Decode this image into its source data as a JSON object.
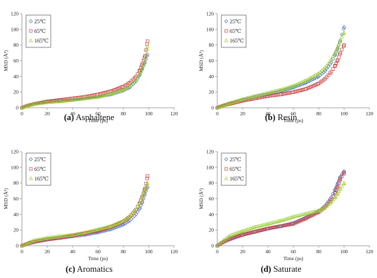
{
  "colors": {
    "series": [
      "#4a6fc7",
      "#c94040",
      "#9acd32"
    ],
    "axis": "#888888"
  },
  "chart_data": [
    {
      "type": "scatter",
      "caption_letter": "(a)",
      "caption_name": "Asphaltene",
      "xlabel": "Time (ps)",
      "ylabel": "MSD (Å²)",
      "xlim": [
        0,
        120
      ],
      "ylim": [
        0,
        120
      ],
      "xticks": [
        0,
        20,
        40,
        60,
        80,
        100,
        120
      ],
      "yticks": [
        0,
        20,
        40,
        60,
        80,
        100,
        120
      ],
      "legend_position": "top-left",
      "series": [
        {
          "name": "25℃",
          "marker": "diamond",
          "points": [
            [
              0,
              0
            ],
            [
              5,
              3
            ],
            [
              10,
              5
            ],
            [
              20,
              8
            ],
            [
              30,
              9
            ],
            [
              40,
              10
            ],
            [
              50,
              12
            ],
            [
              60,
              14
            ],
            [
              70,
              17
            ],
            [
              80,
              22
            ],
            [
              85,
              26
            ],
            [
              90,
              34
            ],
            [
              93,
              42
            ],
            [
              95,
              50
            ],
            [
              97,
              58
            ],
            [
              99,
              68
            ]
          ]
        },
        {
          "name": "65℃",
          "marker": "square",
          "points": [
            [
              0,
              0
            ],
            [
              5,
              3
            ],
            [
              10,
              5
            ],
            [
              20,
              8
            ],
            [
              30,
              10
            ],
            [
              40,
              12
            ],
            [
              50,
              14
            ],
            [
              60,
              17
            ],
            [
              70,
              21
            ],
            [
              80,
              27
            ],
            [
              85,
              32
            ],
            [
              90,
              40
            ],
            [
              93,
              48
            ],
            [
              95,
              56
            ],
            [
              97,
              66
            ],
            [
              99,
              85
            ]
          ]
        },
        {
          "name": "165℃",
          "marker": "triangle",
          "points": [
            [
              0,
              0
            ],
            [
              5,
              3
            ],
            [
              10,
              5
            ],
            [
              20,
              7
            ],
            [
              30,
              8
            ],
            [
              40,
              10
            ],
            [
              50,
              12
            ],
            [
              60,
              14
            ],
            [
              70,
              18
            ],
            [
              80,
              23
            ],
            [
              85,
              28
            ],
            [
              90,
              36
            ],
            [
              93,
              44
            ],
            [
              95,
              52
            ],
            [
              97,
              62
            ],
            [
              99,
              78
            ]
          ]
        }
      ]
    },
    {
      "type": "scatter",
      "caption_letter": "(b)",
      "caption_name": "Resin",
      "xlabel": "Time (ps)",
      "ylabel": "MSD (Å²)",
      "xlim": [
        0,
        120
      ],
      "ylim": [
        0,
        120
      ],
      "xticks": [
        0,
        20,
        40,
        60,
        80,
        100,
        120
      ],
      "yticks": [
        0,
        20,
        40,
        60,
        80,
        100,
        120
      ],
      "legend_position": "top-left",
      "series": [
        {
          "name": "25℃",
          "marker": "diamond",
          "points": [
            [
              0,
              0
            ],
            [
              5,
              3
            ],
            [
              10,
              6
            ],
            [
              20,
              10
            ],
            [
              30,
              14
            ],
            [
              40,
              17
            ],
            [
              50,
              21
            ],
            [
              60,
              26
            ],
            [
              70,
              32
            ],
            [
              80,
              40
            ],
            [
              85,
              47
            ],
            [
              90,
              58
            ],
            [
              93,
              68
            ],
            [
              95,
              76
            ],
            [
              97,
              86
            ],
            [
              100,
              103
            ]
          ]
        },
        {
          "name": "65℃",
          "marker": "square",
          "points": [
            [
              0,
              0
            ],
            [
              5,
              3
            ],
            [
              10,
              5
            ],
            [
              20,
              9
            ],
            [
              30,
              12
            ],
            [
              40,
              15
            ],
            [
              50,
              17
            ],
            [
              60,
              20
            ],
            [
              70,
              24
            ],
            [
              80,
              31
            ],
            [
              85,
              37
            ],
            [
              90,
              46
            ],
            [
              93,
              54
            ],
            [
              95,
              61
            ],
            [
              97,
              70
            ],
            [
              100,
              80
            ]
          ]
        },
        {
          "name": "165℃",
          "marker": "triangle",
          "points": [
            [
              0,
              0
            ],
            [
              5,
              3
            ],
            [
              10,
              6
            ],
            [
              20,
              11
            ],
            [
              30,
              15
            ],
            [
              40,
              19
            ],
            [
              50,
              23
            ],
            [
              60,
              28
            ],
            [
              70,
              35
            ],
            [
              80,
              44
            ],
            [
              85,
              51
            ],
            [
              90,
              62
            ],
            [
              93,
              71
            ],
            [
              95,
              78
            ],
            [
              97,
              86
            ],
            [
              100,
              96
            ]
          ]
        }
      ]
    },
    {
      "type": "scatter",
      "caption_letter": "(c)",
      "caption_name": "Aromatics",
      "xlabel": "Time (ps)",
      "ylabel": "MSD (Å²)",
      "xlim": [
        0,
        120
      ],
      "ylim": [
        0,
        120
      ],
      "xticks": [
        0,
        20,
        40,
        60,
        80,
        100,
        120
      ],
      "yticks": [
        0,
        20,
        40,
        60,
        80,
        100,
        120
      ],
      "legend_position": "top-left",
      "series": [
        {
          "name": "25℃",
          "marker": "diamond",
          "points": [
            [
              0,
              0
            ],
            [
              5,
              3
            ],
            [
              10,
              5
            ],
            [
              20,
              8
            ],
            [
              30,
              10
            ],
            [
              40,
              12
            ],
            [
              50,
              14
            ],
            [
              60,
              17
            ],
            [
              70,
              21
            ],
            [
              80,
              27
            ],
            [
              85,
              32
            ],
            [
              90,
              40
            ],
            [
              93,
              48
            ],
            [
              95,
              56
            ],
            [
              97,
              66
            ],
            [
              99,
              75
            ]
          ]
        },
        {
          "name": "65℃",
          "marker": "square",
          "points": [
            [
              0,
              0
            ],
            [
              5,
              3
            ],
            [
              10,
              5
            ],
            [
              20,
              8
            ],
            [
              30,
              10
            ],
            [
              40,
              13
            ],
            [
              50,
              16
            ],
            [
              60,
              19
            ],
            [
              70,
              24
            ],
            [
              80,
              31
            ],
            [
              85,
              37
            ],
            [
              90,
              46
            ],
            [
              93,
              55
            ],
            [
              95,
              63
            ],
            [
              97,
              73
            ],
            [
              99,
              89
            ]
          ]
        },
        {
          "name": "165℃",
          "marker": "triangle",
          "points": [
            [
              0,
              0
            ],
            [
              5,
              4
            ],
            [
              10,
              7
            ],
            [
              20,
              10
            ],
            [
              30,
              12
            ],
            [
              40,
              14
            ],
            [
              50,
              17
            ],
            [
              60,
              21
            ],
            [
              70,
              25
            ],
            [
              80,
              32
            ],
            [
              85,
              38
            ],
            [
              90,
              47
            ],
            [
              93,
              55
            ],
            [
              95,
              63
            ],
            [
              97,
              72
            ],
            [
              99,
              80
            ]
          ]
        }
      ]
    },
    {
      "type": "scatter",
      "caption_letter": "(d)",
      "caption_name": "Saturate",
      "xlabel": "Time (ps)",
      "ylabel": "MSD (Å²)",
      "xlim": [
        0,
        120
      ],
      "ylim": [
        0,
        120
      ],
      "xticks": [
        0,
        20,
        40,
        60,
        80,
        100,
        120
      ],
      "yticks": [
        0,
        20,
        40,
        60,
        80,
        100,
        120
      ],
      "legend_position": "top-left",
      "series": [
        {
          "name": "25℃",
          "marker": "diamond",
          "points": [
            [
              0,
              0
            ],
            [
              5,
              5
            ],
            [
              10,
              8
            ],
            [
              20,
              14
            ],
            [
              30,
              18
            ],
            [
              40,
              22
            ],
            [
              50,
              25
            ],
            [
              60,
              29
            ],
            [
              70,
              36
            ],
            [
              80,
              44
            ],
            [
              85,
              51
            ],
            [
              90,
              62
            ],
            [
              93,
              72
            ],
            [
              95,
              80
            ],
            [
              97,
              88
            ],
            [
              100,
              95
            ]
          ]
        },
        {
          "name": "65℃",
          "marker": "square",
          "points": [
            [
              0,
              0
            ],
            [
              5,
              5
            ],
            [
              10,
              9
            ],
            [
              20,
              14
            ],
            [
              30,
              18
            ],
            [
              40,
              22
            ],
            [
              50,
              25
            ],
            [
              60,
              28
            ],
            [
              70,
              35
            ],
            [
              80,
              43
            ],
            [
              85,
              49
            ],
            [
              90,
              59
            ],
            [
              93,
              68
            ],
            [
              95,
              76
            ],
            [
              97,
              85
            ],
            [
              100,
              93
            ]
          ]
        },
        {
          "name": "165℃",
          "marker": "triangle",
          "points": [
            [
              0,
              0
            ],
            [
              5,
              7
            ],
            [
              10,
              13
            ],
            [
              20,
              19
            ],
            [
              30,
              24
            ],
            [
              40,
              28
            ],
            [
              50,
              32
            ],
            [
              60,
              37
            ],
            [
              70,
              41
            ],
            [
              80,
              45
            ],
            [
              85,
              49
            ],
            [
              90,
              56
            ],
            [
              93,
              62
            ],
            [
              95,
              67
            ],
            [
              97,
              73
            ],
            [
              100,
              80
            ]
          ]
        }
      ]
    }
  ]
}
